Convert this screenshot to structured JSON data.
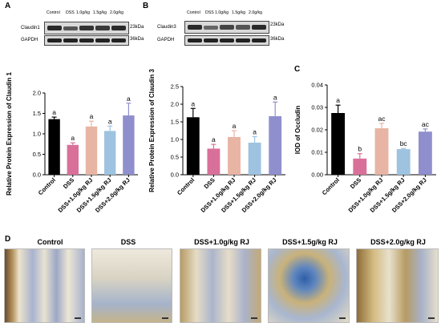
{
  "panels": {
    "a": {
      "label": "A",
      "lanes": [
        "Control",
        "DSS",
        "1.0g/kg",
        "1.5g/kg",
        "2.0g/kg"
      ],
      "proteins": [
        {
          "name": "Claudin1",
          "kda": "23kDa"
        },
        {
          "name": "GAPDH",
          "kda": "36kDa"
        }
      ]
    },
    "b": {
      "label": "B",
      "lanes": [
        "Control",
        "DSS",
        "1.0g/kg",
        "1.5g/kg",
        "2.0g/kg"
      ],
      "proteins": [
        {
          "name": "Claudin3",
          "kda": "23kDa"
        },
        {
          "name": "GAPDH",
          "kda": "36kDa"
        }
      ]
    },
    "c": {
      "label": "C"
    },
    "d": {
      "label": "D",
      "images": [
        "Control",
        "DSS",
        "DSS+1.0g/kg RJ",
        "DSS+1.5g/kg RJ",
        "DSS+2.0g/kg RJ"
      ]
    }
  },
  "chart_data": [
    {
      "type": "bar",
      "categories": [
        "Control",
        "DSS",
        "DSS+1.0g/kg RJ",
        "DSS+1.5g/kg RJ",
        "DSS+2.0g/kg RJ"
      ],
      "values": [
        1.36,
        0.73,
        1.18,
        1.07,
        1.45
      ],
      "errors": [
        0.05,
        0.05,
        0.13,
        0.12,
        0.3
      ],
      "sig_letters": [
        "a",
        "a",
        "a",
        "a",
        "a"
      ],
      "colors": [
        "#000000",
        "#d9709a",
        "#e8b4a4",
        "#9dc3e0",
        "#8f8fce"
      ],
      "ylabel": "Relative Protein Expression of Claudin 1",
      "ylim": [
        0,
        2.0
      ],
      "yticks": [
        "0.0",
        "0.5",
        "1.0",
        "1.5",
        "2.0"
      ]
    },
    {
      "type": "bar",
      "categories": [
        "Control",
        "DSS",
        "DSS+1.0g/kg RJ",
        "DSS+1.5g/kg RJ",
        "DSS+2.0g/kg RJ"
      ],
      "values": [
        1.63,
        0.74,
        1.07,
        0.91,
        1.66
      ],
      "errors": [
        0.25,
        0.12,
        0.18,
        0.17,
        0.4
      ],
      "sig_letters": [
        "a",
        "a",
        "a",
        "a",
        "a"
      ],
      "colors": [
        "#000000",
        "#d9709a",
        "#e8b4a4",
        "#9dc3e0",
        "#8f8fce"
      ],
      "ylabel": "Relative Protein Expression of Claudin 3",
      "ylim": [
        0,
        2.5
      ],
      "yticks": [
        "0.0",
        "0.5",
        "1.0",
        "1.5",
        "2.0",
        "2.5"
      ]
    },
    {
      "type": "bar",
      "categories": [
        "Control",
        "DSS",
        "DSS+1.0g/kg RJ",
        "DSS+1.5g/kg RJ",
        "DSS+2.0g/kg RJ"
      ],
      "values": [
        0.0275,
        0.0072,
        0.0207,
        0.0114,
        0.0192
      ],
      "errors": [
        0.0035,
        0.0022,
        0.0022,
        0.0003,
        0.0012
      ],
      "sig_letters": [
        "a",
        "b",
        "ac",
        "bc",
        "ac"
      ],
      "colors": [
        "#000000",
        "#d9709a",
        "#e8b4a4",
        "#9dc3e0",
        "#8f8fce"
      ],
      "ylabel": "IOD of Occludin",
      "ylim": [
        0,
        0.04
      ],
      "yticks": [
        "0.00",
        "0.01",
        "0.02",
        "0.03",
        "0.04"
      ]
    }
  ]
}
